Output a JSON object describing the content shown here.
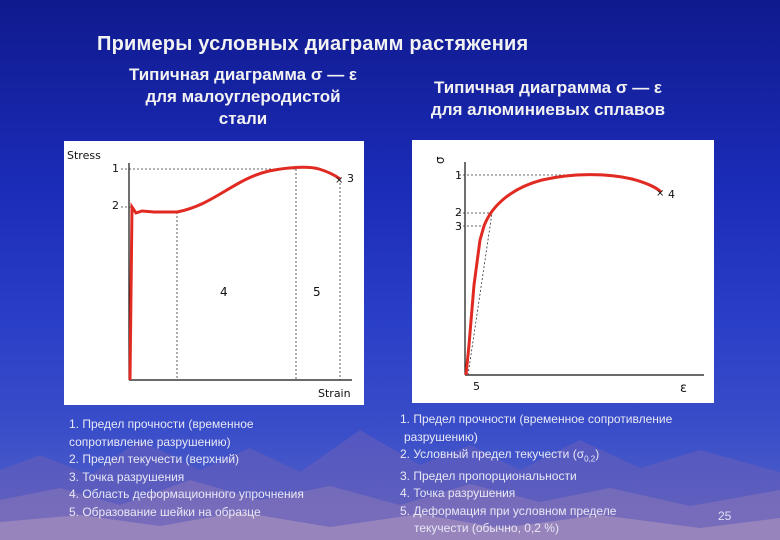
{
  "slide": {
    "title": "Примеры условных диаграмм растяжения",
    "left_heading": [
      "Типичная диаграмма σ — ε",
      "для малоуглеродистой",
      "стали"
    ],
    "right_heading": [
      "Типичная диаграмма σ — ε",
      "для алюминиевых сплавов"
    ],
    "page_number": "25"
  },
  "left_chart": {
    "y_axis_label": "Stress",
    "x_axis_label": "Strain",
    "point_labels": [
      "1",
      "2",
      "3"
    ],
    "region_labels": [
      "4",
      "5"
    ]
  },
  "right_chart": {
    "y_axis_label": "σ",
    "x_axis_label": "ε",
    "point_labels": [
      "1",
      "2",
      "3",
      "4"
    ],
    "origin_label": "5"
  },
  "left_notes": [
    "1. Предел прочности (временное",
    "сопротивление разрушению)",
    "2. Предел текучести (верхний)",
    "3. Точка разрушения",
    "4. Область деформационного упрочнения",
    "5. Образование шейки на образце"
  ],
  "right_notes": {
    "line1": "1. Предел прочности (временное сопротивление",
    "line2": "разрушению)",
    "line3_prefix": "2. Условный предел текучести (σ",
    "line3_sub": "0,2",
    "line3_suffix": ")",
    "line4": "3. Предел пропорциональности",
    "line5": "4. Точка разрушения",
    "line6": "5. Деформация при условном пределе",
    "line7": "текучести (обычно, 0,2 %)"
  },
  "colors": {
    "curve": "#e02a22",
    "text": "#f2f2f2"
  }
}
